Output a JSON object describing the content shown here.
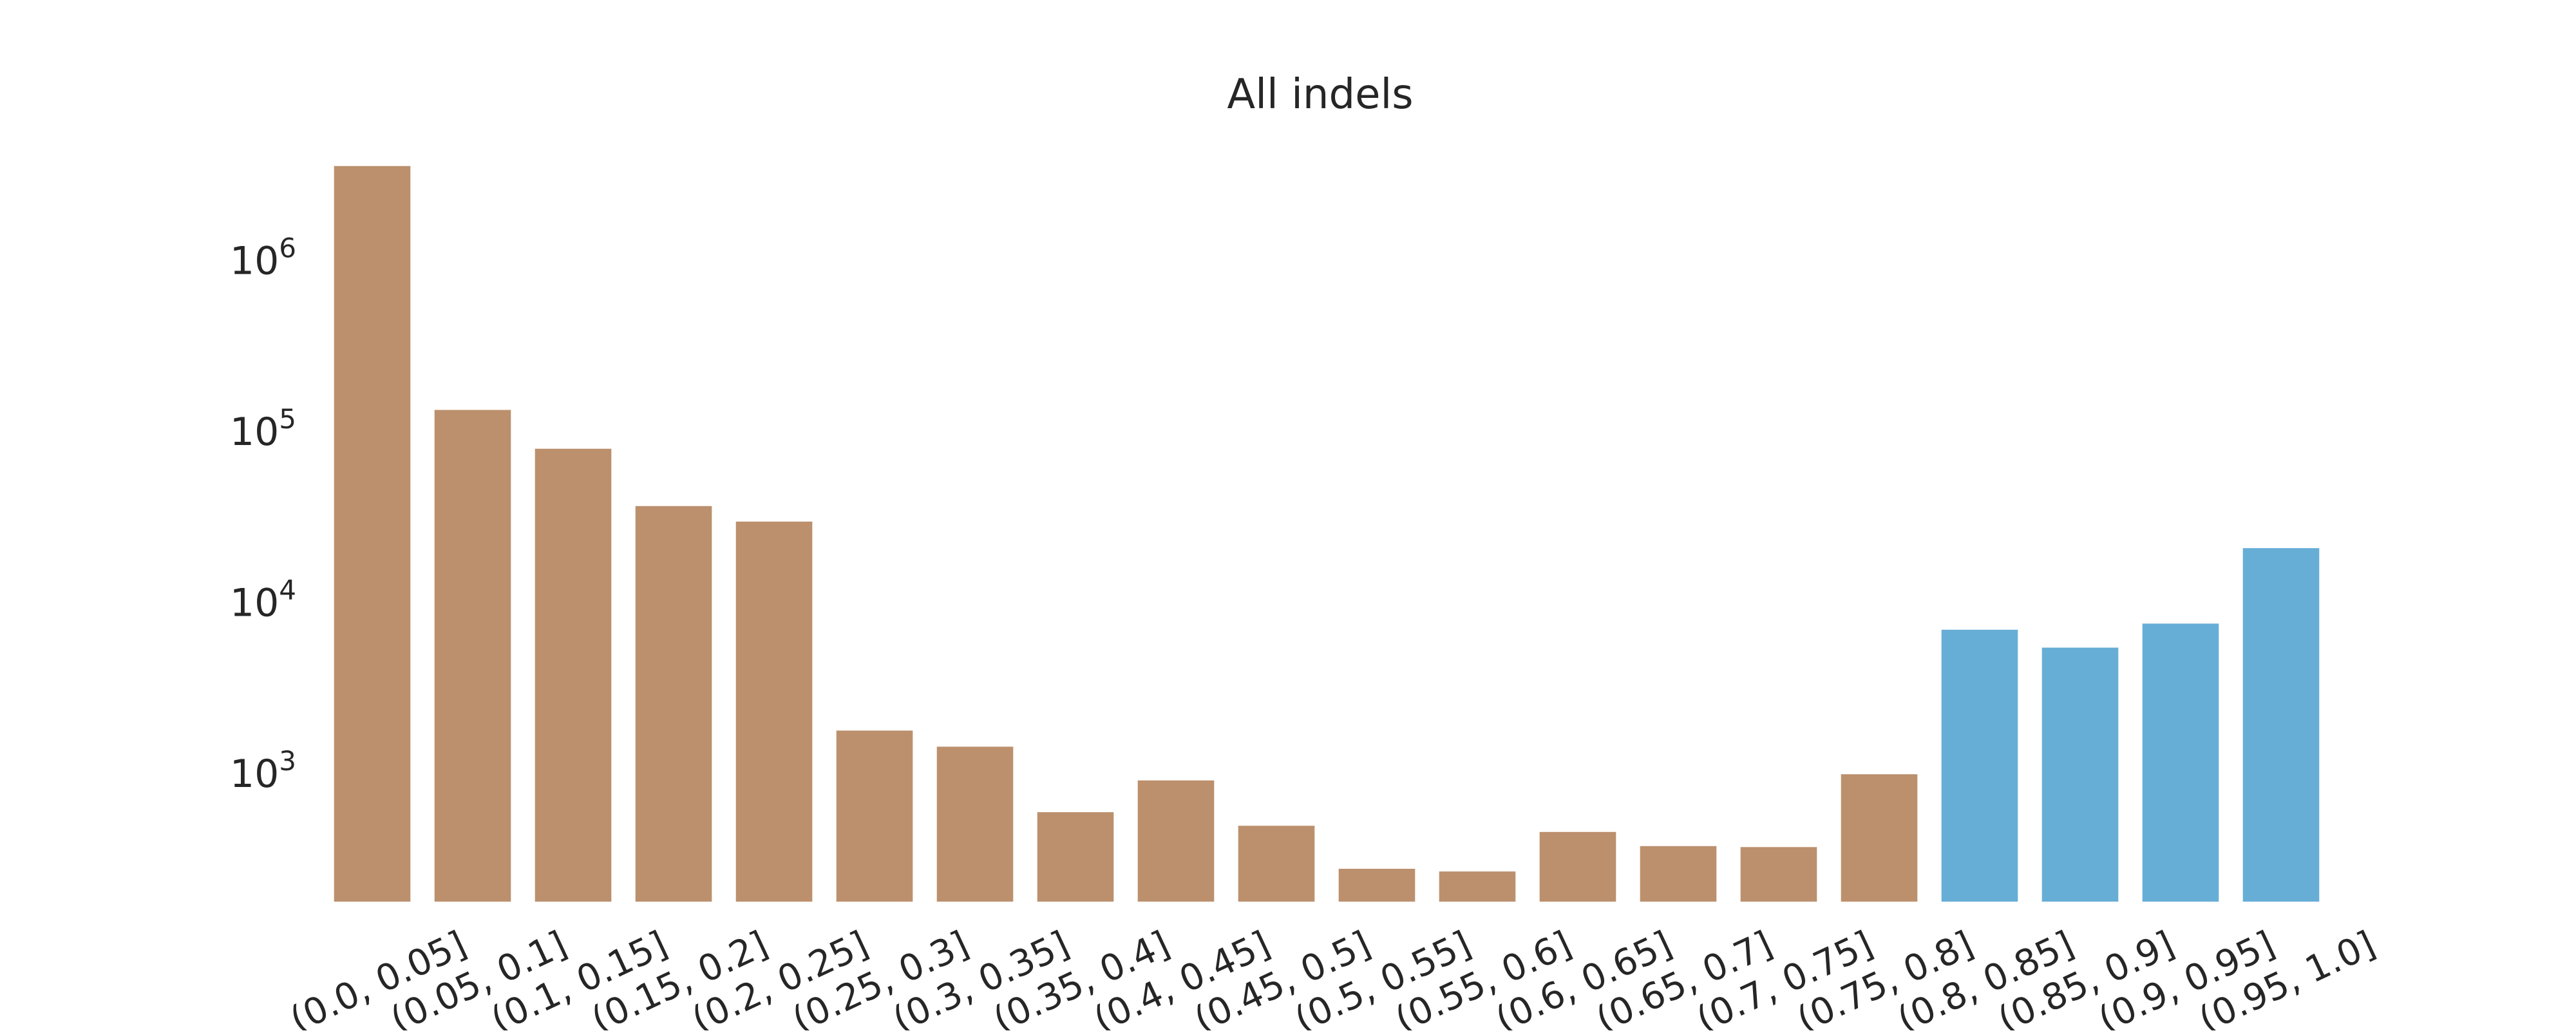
{
  "chart_data": {
    "type": "bar",
    "title": "All indels",
    "xlabel": "",
    "ylabel": "",
    "yscale": "log",
    "ylim": [
      180,
      4200000
    ],
    "yticks": [
      {
        "value": 1000,
        "base": "10",
        "exp": "3"
      },
      {
        "value": 10000,
        "base": "10",
        "exp": "4"
      },
      {
        "value": 100000,
        "base": "10",
        "exp": "5"
      },
      {
        "value": 1000000,
        "base": "10",
        "exp": "6"
      }
    ],
    "grid": false,
    "legend": "none",
    "categories": [
      "(0.0, 0.05]",
      "(0.05, 0.1]",
      "(0.1, 0.15]",
      "(0.15, 0.2]",
      "(0.2, 0.25]",
      "(0.25, 0.3]",
      "(0.3, 0.35]",
      "(0.35, 0.4]",
      "(0.4, 0.45]",
      "(0.45, 0.5]",
      "(0.5, 0.55]",
      "(0.55, 0.6]",
      "(0.6, 0.65]",
      "(0.65, 0.7]",
      "(0.7, 0.75]",
      "(0.75, 0.8]",
      "(0.8, 0.85]",
      "(0.85, 0.9]",
      "(0.9, 0.95]",
      "(0.95, 1.0]"
    ],
    "values": [
      3600000,
      135000,
      80000,
      37000,
      30000,
      1800,
      1450,
      600,
      920,
      500,
      280,
      270,
      460,
      380,
      375,
      1000,
      7000,
      5500,
      7600,
      21000
    ],
    "colors": [
      "#bc906d",
      "#bc906d",
      "#bc906d",
      "#bc906d",
      "#bc906d",
      "#bc906d",
      "#bc906d",
      "#bc906d",
      "#bc906d",
      "#bc906d",
      "#bc906d",
      "#bc906d",
      "#bc906d",
      "#bc906d",
      "#bc906d",
      "#bc906d",
      "#67aed7",
      "#67aed7",
      "#67aed7",
      "#67aed7"
    ]
  }
}
